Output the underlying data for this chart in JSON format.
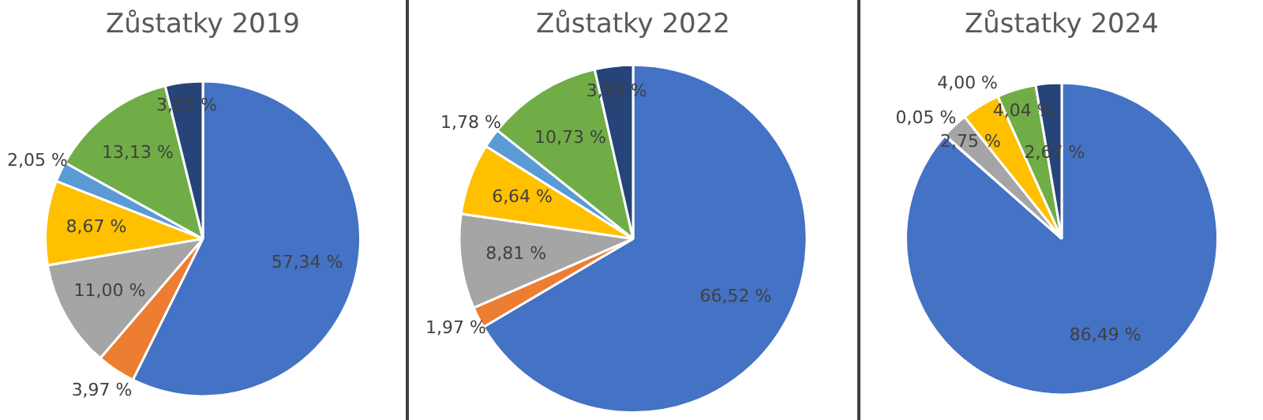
{
  "chart_data": [
    {
      "type": "pie",
      "title": "Zůstatky 2019",
      "categories": [
        null,
        null,
        null,
        null,
        null,
        null,
        null
      ],
      "values": [
        57.34,
        3.97,
        11.0,
        8.67,
        2.05,
        13.13,
        3.85
      ],
      "colors": [
        "#4472c4",
        "#ed7d31",
        "#a5a5a5",
        "#ffc000",
        "#5b9bd5",
        "#70ad47",
        "#264478"
      ],
      "value_labels": [
        "57,34 %",
        "3,97 %",
        "11,00 %",
        "8,67 %",
        "2,05 %",
        "13,13 %",
        "3,85 %"
      ]
    },
    {
      "type": "pie",
      "title": "Zůstatky 2022",
      "categories": [
        null,
        null,
        null,
        null,
        null,
        null,
        null
      ],
      "values": [
        66.52,
        1.97,
        8.81,
        6.64,
        1.78,
        10.73,
        3.55
      ],
      "colors": [
        "#4472c4",
        "#ed7d31",
        "#a5a5a5",
        "#ffc000",
        "#5b9bd5",
        "#70ad47",
        "#264478"
      ],
      "value_labels": [
        "66,52 %",
        "1,97 %",
        "8,81 %",
        "6,64 %",
        "1,78 %",
        "10,73 %",
        "3,55 %"
      ]
    },
    {
      "type": "pie",
      "title": "Zůstatky 2024",
      "categories": [
        null,
        null,
        null,
        null,
        null,
        null,
        null
      ],
      "values": [
        86.49,
        0.05,
        2.75,
        4.0,
        null,
        4.04,
        2.67
      ],
      "colors": [
        "#4472c4",
        "#ed7d31",
        "#a5a5a5",
        "#ffc000",
        "#5b9bd5",
        "#70ad47",
        "#264478"
      ],
      "value_labels": [
        "86,49 %",
        "0,05 %",
        "2,75 %",
        "4,00 %",
        null,
        "4,04 %",
        "2,67 %"
      ]
    }
  ]
}
